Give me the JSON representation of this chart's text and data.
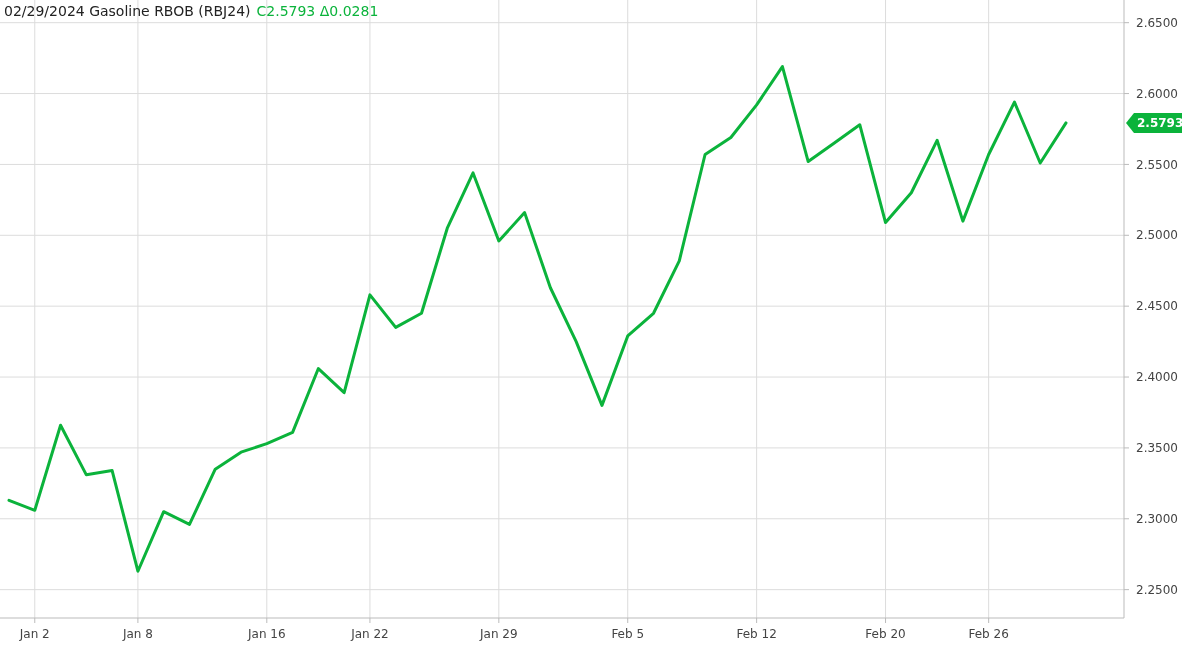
{
  "chart_data": {
    "type": "line",
    "title": "02/29/2024 Gasoline RBOB (RBJ24)",
    "subtitle": "C2.5793 Δ0.0281",
    "categories": [
      null,
      "Jan 2",
      null,
      null,
      null,
      "Jan 8",
      null,
      null,
      null,
      null,
      "Jan 16",
      null,
      null,
      null,
      "Jan 22",
      null,
      null,
      null,
      null,
      "Jan 29",
      null,
      null,
      null,
      null,
      "Feb 5",
      null,
      null,
      null,
      null,
      "Feb 12",
      null,
      null,
      null,
      null,
      "Feb 20",
      null,
      null,
      null,
      "Feb 26",
      null,
      null,
      null
    ],
    "series": [
      {
        "color": "#0bb33b",
        "values": [
          2.313,
          2.306,
          2.366,
          2.331,
          2.334,
          2.263,
          2.305,
          2.296,
          2.335,
          2.347,
          2.353,
          2.361,
          2.406,
          2.389,
          2.458,
          2.435,
          2.445,
          2.505,
          2.544,
          2.496,
          2.516,
          2.463,
          2.425,
          2.38,
          2.429,
          2.445,
          2.482,
          2.557,
          2.569,
          2.592,
          2.619,
          2.552,
          2.565,
          2.578,
          2.509,
          2.53,
          2.567,
          2.51,
          2.557,
          2.594,
          2.551,
          2.5793
        ]
      }
    ],
    "ylim": [
      2.23,
      2.666
    ],
    "yticks": [
      {
        "value": 2.25,
        "label": "2.2500"
      },
      {
        "value": 2.3,
        "label": "2.3000"
      },
      {
        "value": 2.35,
        "label": "2.3500"
      },
      {
        "value": 2.4,
        "label": "2.4000"
      },
      {
        "value": 2.45,
        "label": "2.4500"
      },
      {
        "value": 2.5,
        "label": "2.5000"
      },
      {
        "value": 2.55,
        "label": "2.5500"
      },
      {
        "value": 2.6,
        "label": "2.6000"
      },
      {
        "value": 2.65,
        "label": "2.6500"
      }
    ],
    "annotations": [
      "2.5793"
    ],
    "grid": true,
    "marker": "none",
    "line_style": "solid"
  }
}
